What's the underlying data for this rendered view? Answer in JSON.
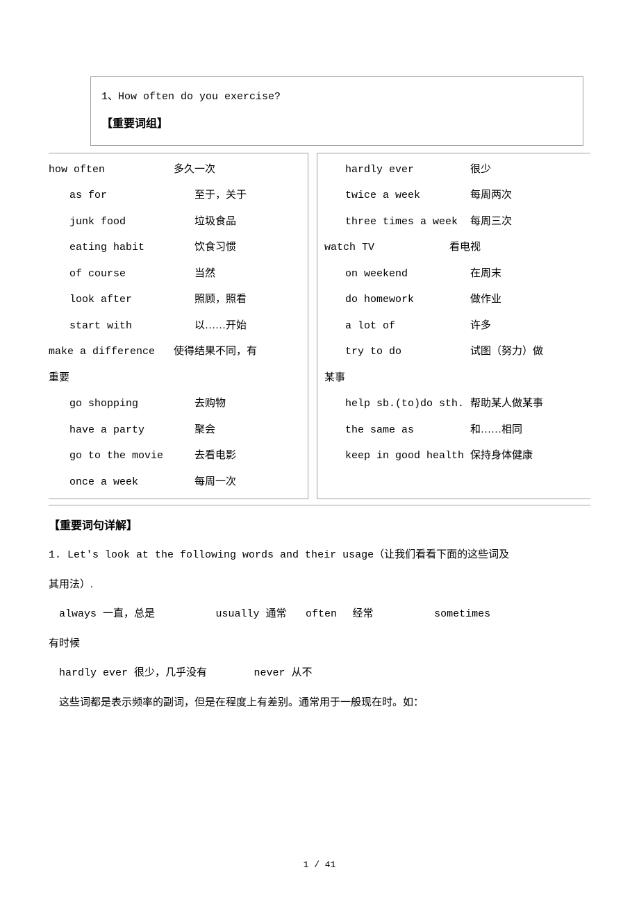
{
  "header": {
    "unit": "1、How often do you exercise?",
    "section1": "【重要词组】"
  },
  "vocab_left": [
    {
      "en": "how often",
      "cn": "多久一次",
      "indent": false
    },
    {
      "en": "as for",
      "cn": "至于，关于",
      "indent": true
    },
    {
      "en": "junk food",
      "cn": "垃圾食品",
      "indent": true
    },
    {
      "en": "eating habit",
      "cn": "饮食习惯",
      "indent": true
    },
    {
      "en": "of course",
      "cn": "当然",
      "indent": true
    },
    {
      "en": "look after",
      "cn": "照顾，照看",
      "indent": true
    },
    {
      "en": "start with",
      "cn": "以……开始",
      "indent": true
    },
    {
      "en": "make a difference",
      "cn": "使得结果不同，有",
      "indent": false
    },
    {
      "en": "",
      "cn": "重要",
      "indent": false,
      "continued": true
    },
    {
      "en": "go shopping",
      "cn": "去购物",
      "indent": true
    },
    {
      "en": "have a party",
      "cn": "聚会",
      "indent": true
    },
    {
      "en": "go to the movie",
      "cn": "去看电影",
      "indent": true
    },
    {
      "en": "once a week",
      "cn": "每周一次",
      "indent": true
    }
  ],
  "vocab_right": [
    {
      "en": "hardly ever",
      "cn": "很少",
      "indent": true
    },
    {
      "en": "twice a week",
      "cn": "每周两次",
      "indent": true
    },
    {
      "en": "three times a week",
      "cn": "每周三次",
      "indent": true
    },
    {
      "en": "watch TV",
      "cn": "看电视",
      "indent": false
    },
    {
      "en": "on weekend",
      "cn": "在周末",
      "indent": true,
      "pad": true
    },
    {
      "en": "do homework",
      "cn": "做作业",
      "indent": true
    },
    {
      "en": "a lot of",
      "cn": "许多",
      "indent": true
    },
    {
      "en": "try to do",
      "cn": "试图（努力）做",
      "indent": true
    },
    {
      "en": "",
      "cn": "某事",
      "indent": false,
      "continued": true
    },
    {
      "en": "help sb.(to)do sth.",
      "cn": "帮助某人做某事",
      "indent": true
    },
    {
      "en": "the same as",
      "cn": "和……相同",
      "indent": true
    },
    {
      "en": "keep in good health",
      "cn": "保持身体健康",
      "indent": true
    }
  ],
  "detail": {
    "heading": "【重要词句详解】",
    "line1": "1. Let's look at the following words and their usage（让我们看看下面的这些词及",
    "line1b": "其用法）.",
    "line2_parts": {
      "a": "always 一直，总是",
      "b": "usually 通常",
      "c": "often",
      "d": "经常",
      "e": "sometimes"
    },
    "line2b": "有时候",
    "line3_parts": {
      "a": "hardly  ever 很少，几乎没有",
      "b": "never 从不"
    },
    "line4": "这些词都是表示频率的副词，但是在程度上有差别。通常用于一般现在时。如："
  },
  "page": "1 / 41"
}
